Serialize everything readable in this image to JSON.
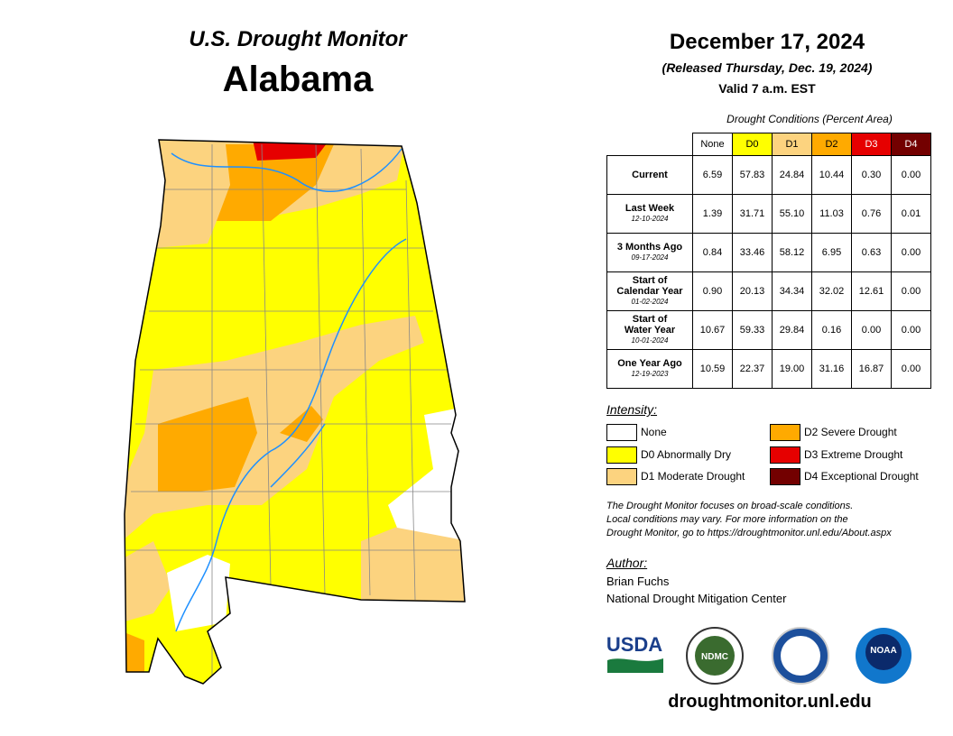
{
  "header": {
    "title": "U.S. Drought Monitor",
    "state": "Alabama",
    "date": "December 17, 2024",
    "released": "(Released Thursday, Dec. 19, 2024)",
    "valid": "Valid 7 a.m. EST"
  },
  "table": {
    "caption": "Drought Conditions (Percent Area)",
    "columns": [
      "None",
      "D0",
      "D1",
      "D2",
      "D3",
      "D4"
    ],
    "rows": [
      {
        "label": [
          "Current"
        ],
        "values": [
          "6.59",
          "57.83",
          "24.84",
          "10.44",
          "0.30",
          "0.00"
        ]
      },
      {
        "label": [
          "Last Week"
        ],
        "date": "12-10-2024",
        "values": [
          "1.39",
          "31.71",
          "55.10",
          "11.03",
          "0.76",
          "0.01"
        ]
      },
      {
        "label": [
          "3 Months Ago"
        ],
        "date": "09-17-2024",
        "values": [
          "0.84",
          "33.46",
          "58.12",
          "6.95",
          "0.63",
          "0.00"
        ]
      },
      {
        "label": [
          "Start of",
          "Calendar Year"
        ],
        "date": "01-02-2024",
        "values": [
          "0.90",
          "20.13",
          "34.34",
          "32.02",
          "12.61",
          "0.00"
        ]
      },
      {
        "label": [
          "Start of",
          "Water Year"
        ],
        "date": "10-01-2024",
        "values": [
          "10.67",
          "59.33",
          "29.84",
          "0.16",
          "0.00",
          "0.00"
        ]
      },
      {
        "label": [
          "One Year Ago"
        ],
        "date": "12-19-2023",
        "values": [
          "10.59",
          "22.37",
          "19.00",
          "31.16",
          "16.87",
          "0.00"
        ]
      }
    ]
  },
  "legend": {
    "title": "Intensity:",
    "items": [
      "None",
      "D0 Abnormally Dry",
      "D1 Moderate Drought",
      "D2 Severe Drought",
      "D3 Extreme Drought",
      "D4 Exceptional Drought"
    ]
  },
  "note": [
    "The Drought Monitor focuses on broad-scale conditions.",
    "Local conditions may vary. For more information on the",
    "Drought Monitor, go to https://droughtmonitor.unl.edu/About.aspx"
  ],
  "author": {
    "title": "Author:",
    "name": "Brian Fuchs",
    "org": "National Drought Mitigation Center"
  },
  "logos": [
    "USDA",
    "NDMC",
    "NOAA"
  ],
  "url": "droughtmonitor.unl.edu"
}
